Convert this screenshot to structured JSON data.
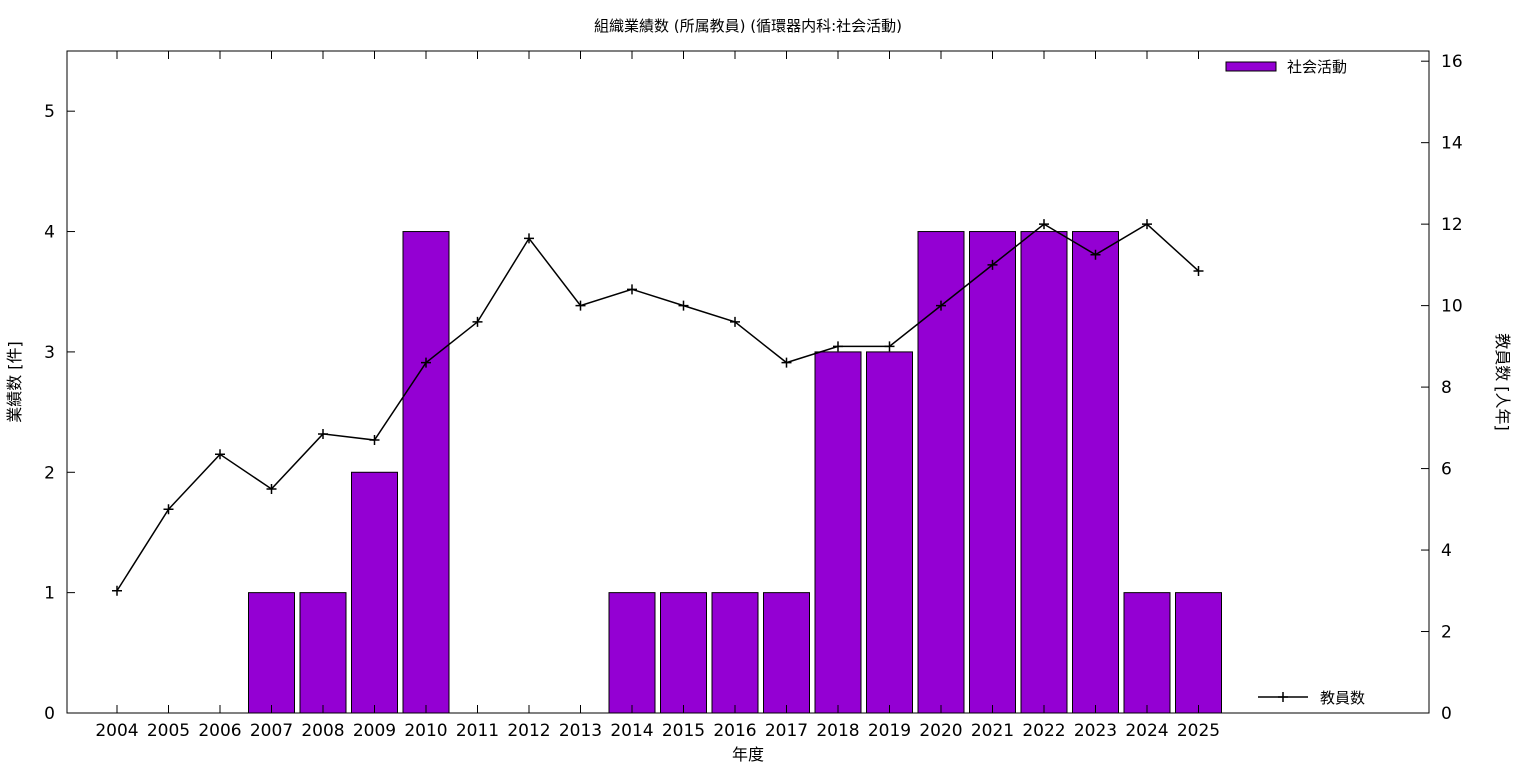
{
  "chart_data": {
    "type": "bar",
    "title": "組織業績数 (所属教員) (循環器内科:社会活動)",
    "xlabel": "年度",
    "ylabel": "業績数 [件]",
    "y2label": "教員数 [人年]",
    "categories": [
      "2004",
      "2005",
      "2006",
      "2007",
      "2008",
      "2009",
      "2010",
      "2011",
      "2012",
      "2013",
      "2014",
      "2015",
      "2016",
      "2017",
      "2018",
      "2019",
      "2020",
      "2021",
      "2022",
      "2023",
      "2024",
      "2025"
    ],
    "ylim": [
      0,
      5.5
    ],
    "yticks": [
      0,
      1,
      2,
      3,
      4,
      5
    ],
    "y2lim": [
      0,
      16.25
    ],
    "y2ticks": [
      0,
      2,
      4,
      6,
      8,
      10,
      12,
      14,
      16
    ],
    "grid": false,
    "series": [
      {
        "name": "社会活動",
        "type": "bar",
        "axis": "left",
        "color": "#9400d3",
        "values": [
          0,
          0,
          0,
          1,
          1,
          2,
          4,
          0,
          0,
          0,
          1,
          1,
          1,
          1,
          3,
          3,
          4,
          4,
          4,
          4,
          1,
          1
        ]
      },
      {
        "name": "教員数",
        "type": "line",
        "axis": "right",
        "color": "#000000",
        "marker": "plus",
        "values": [
          3.0,
          5.0,
          6.35,
          5.5,
          6.85,
          6.7,
          8.6,
          9.6,
          11.65,
          10.0,
          10.4,
          10.0,
          9.6,
          8.6,
          9.0,
          9.0,
          10.0,
          11.0,
          12.0,
          11.25,
          12.0,
          10.85
        ]
      }
    ],
    "legend": [
      {
        "label": "社会活動",
        "position": "top-right",
        "swatch": "bar"
      },
      {
        "label": "教員数",
        "position": "bottom-right",
        "swatch": "line-plus"
      }
    ]
  }
}
